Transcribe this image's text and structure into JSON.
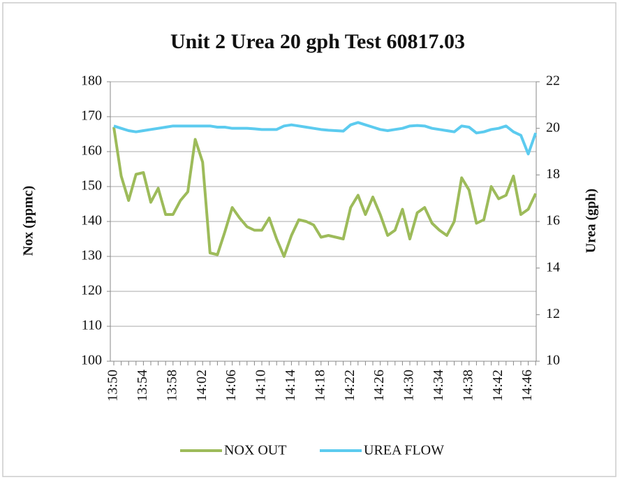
{
  "chart_data": {
    "type": "line",
    "title": "Unit 2 Urea 20 gph  Test 60817.03",
    "ylabel": "Nox (ppmc)",
    "y2label": "Urea (gph)",
    "categories": [
      "13:50",
      null,
      null,
      null,
      "13:54",
      null,
      null,
      null,
      "13:58",
      null,
      null,
      null,
      "14:02",
      null,
      null,
      null,
      "14:06",
      null,
      null,
      null,
      "14:10",
      null,
      null,
      null,
      "14:14",
      null,
      null,
      null,
      "14:18",
      null,
      null,
      null,
      "14:22",
      null,
      null,
      null,
      "14:26",
      null,
      null,
      null,
      "14:30",
      null,
      null,
      null,
      "14:34",
      null,
      null,
      null,
      "14:38",
      null,
      null,
      null,
      "14:42",
      null,
      null,
      null,
      "14:46",
      null
    ],
    "series": [
      {
        "name": "NOX OUT",
        "color": "#9dbb5a",
        "values": [
          167,
          153,
          146,
          153.5,
          154,
          145.5,
          149.5,
          142,
          142,
          146,
          148.5,
          163.5,
          157,
          131,
          130.5,
          137,
          144,
          141,
          138.5,
          137.5,
          137.5,
          141,
          135,
          130,
          136,
          140.5,
          140,
          139,
          135.5,
          136,
          135.5,
          135,
          144,
          147.5,
          142,
          147,
          142,
          136,
          137.5,
          143.5,
          135,
          142.5,
          144,
          139.5,
          137.5,
          136,
          140,
          152.5,
          149,
          139.5,
          140.5,
          150,
          146.5,
          147.5,
          153,
          142,
          143.5,
          148
        ]
      },
      {
        "name": "UREA FLOW",
        "color": "#5ccbef",
        "axis": "y2",
        "values": [
          20.1,
          20,
          19.9,
          19.85,
          19.9,
          19.95,
          20,
          20.05,
          20.1,
          20.1,
          20.1,
          20.1,
          20.1,
          20.1,
          20.05,
          20.05,
          20,
          20,
          20,
          19.98,
          19.95,
          19.95,
          19.95,
          20.1,
          20.15,
          20.1,
          20.05,
          20,
          19.95,
          19.92,
          19.9,
          19.88,
          20.15,
          20.25,
          20.15,
          20.05,
          19.95,
          19.9,
          19.95,
          20,
          20.1,
          20.12,
          20.1,
          20,
          19.95,
          19.9,
          19.85,
          20.1,
          20.05,
          19.8,
          19.85,
          19.95,
          20,
          20.1,
          19.85,
          19.7,
          18.9,
          19.8
        ]
      }
    ],
    "ylim": [
      100,
      180
    ],
    "yticks": [
      100,
      110,
      120,
      130,
      140,
      150,
      160,
      170,
      180
    ],
    "y2lim": [
      10,
      22
    ],
    "y2ticks": [
      10,
      12,
      14,
      16,
      18,
      20,
      22
    ],
    "grid": true,
    "legend": "bottom"
  }
}
